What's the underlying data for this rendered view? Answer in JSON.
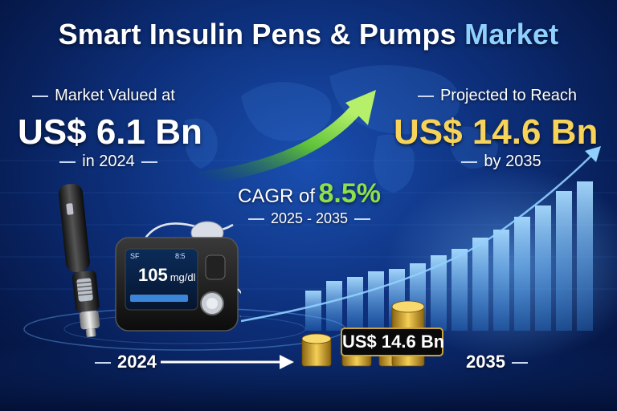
{
  "title": {
    "main": "Smart Insulin Pens & Pumps",
    "highlight": "Market"
  },
  "left": {
    "label": "Market Valued at",
    "value": "US$ 6.1 Bn",
    "year": "in 2024"
  },
  "right": {
    "label": "Projected to Reach",
    "value": "US$ 14.6 Bn",
    "year": "by 2035"
  },
  "cagr": {
    "prefix": "CAGR of",
    "value": "8.5%",
    "period": "2025 - 2035"
  },
  "pump_screen": {
    "reading": "105",
    "unit": "mg/dl",
    "top_left": "SF",
    "top_right": "8:5"
  },
  "timeline": {
    "start": "2024",
    "end": "2035",
    "coin_label": "US$ 14.6 Bn"
  },
  "colors": {
    "gold": "#f7d35a",
    "green": "#8be04c",
    "accent": "#8fd0ff"
  }
}
